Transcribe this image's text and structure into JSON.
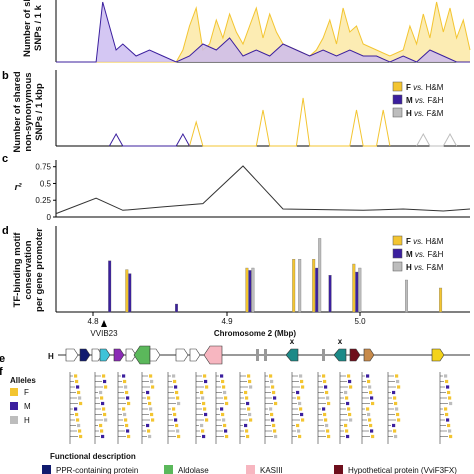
{
  "colors": {
    "F": "#f3c531",
    "M": "#3b1f9e",
    "H": "#bdbdbd",
    "F_fill": "#fbe7a0",
    "M_fill": "#c9b9f0"
  },
  "panels": {
    "a": {
      "letter": "",
      "ylabel_lines": [
        "Number of sl",
        "SNPs / 1 k"
      ]
    },
    "b": {
      "letter": "b",
      "ylabel_lines": [
        "Number of shared",
        "non-synonymous",
        "SNPs / 1 kbp"
      ]
    },
    "c": {
      "letter": "c",
      "ylabel": "r²"
    },
    "d": {
      "letter": "d",
      "ylabel_lines": [
        "TF-binding motif",
        "conservation",
        "per gene promoter"
      ]
    },
    "e": {
      "letter": "e",
      "track_label": "H"
    },
    "f": {
      "letter": "f"
    }
  },
  "legend_comparisons": [
    {
      "key": "F",
      "label_a": "F",
      "label_b": "vs.",
      "label_c": "H&M"
    },
    {
      "key": "M",
      "label_a": "M",
      "label_b": "vs.",
      "label_c": "F&H"
    },
    {
      "key": "H",
      "label_a": "H",
      "label_b": "vs.",
      "label_c": "F&M"
    }
  ],
  "alleles": {
    "title": "Alleles",
    "items": [
      {
        "key": "F",
        "label": "F"
      },
      {
        "key": "M",
        "label": "M"
      },
      {
        "key": "H",
        "label": "H"
      }
    ]
  },
  "xaxis": {
    "title": "Chromosome 2 (Mbp)",
    "ticks": [
      "4.8",
      "4.9",
      "5.0"
    ],
    "marker": "VVIB23"
  },
  "gene_marks": [
    "x",
    "x"
  ],
  "functional": {
    "title": "Functional description",
    "items": [
      {
        "label": "PPR-containing protein",
        "color": "#101a6e"
      },
      {
        "label": "Aldolase",
        "color": "#5bb85b"
      },
      {
        "label": "KASIII",
        "color": "#f7b6c0"
      },
      {
        "label": "Hypothetical protein (VviF3FX)",
        "color": "#6e0f1c"
      }
    ]
  },
  "chart_data": [
    {
      "type": "area",
      "panel": "a",
      "xlim": [
        4.75,
        5.06
      ],
      "series": [
        {
          "key": "F",
          "x": [
            4.75,
            4.79,
            4.8,
            4.82,
            4.84,
            4.845,
            4.85,
            4.855,
            4.86,
            4.865,
            4.87,
            4.875,
            4.88,
            4.885,
            4.89,
            4.895,
            4.9,
            4.905,
            4.91,
            4.915,
            4.92,
            4.93,
            4.94,
            4.945,
            4.95,
            4.955,
            4.96,
            4.965,
            4.97,
            4.975,
            4.98,
            4.99,
            5.0,
            5.01,
            5.015,
            5.02,
            5.025,
            5.03,
            5.035,
            5.04,
            5.045,
            5.05,
            5.055,
            5.06
          ],
          "y": [
            0,
            0,
            0,
            0,
            0,
            2,
            6,
            9,
            2,
            3,
            7,
            4,
            8,
            5,
            3,
            6,
            9,
            4,
            8,
            5,
            3,
            2,
            1,
            2,
            4,
            7,
            3,
            9,
            5,
            6,
            3,
            2,
            1,
            2,
            6,
            3,
            8,
            4,
            10,
            5,
            9,
            4,
            7,
            2
          ]
        },
        {
          "key": "M",
          "x": [
            4.75,
            4.78,
            4.785,
            4.79,
            4.795,
            4.8,
            4.81,
            4.82,
            4.83,
            4.84,
            4.85,
            4.86,
            4.87,
            4.88,
            4.89,
            4.9,
            4.91,
            4.92,
            4.93,
            4.94,
            4.95,
            4.96,
            4.97,
            4.98,
            4.99,
            5.0,
            5.01,
            5.02,
            5.03,
            5.04,
            5.05,
            5.06
          ],
          "y": [
            0,
            0,
            10,
            6,
            2,
            3,
            1,
            2,
            1,
            0,
            1,
            3,
            2,
            4,
            1,
            2,
            1,
            3,
            2,
            1,
            2,
            1,
            2,
            1,
            1,
            0,
            1,
            0,
            2,
            1,
            0,
            0
          ]
        }
      ]
    },
    {
      "type": "line",
      "panel": "b",
      "xlim": [
        4.75,
        5.06
      ],
      "series": [
        {
          "key": "F",
          "x": [
            4.85,
            4.855,
            4.86,
            4.9,
            4.905,
            4.91,
            4.93,
            4.935,
            4.94,
            4.97,
            4.975,
            4.98,
            4.99,
            4.995,
            5.0
          ],
          "y": [
            0,
            2,
            0,
            0,
            3,
            0,
            0,
            4,
            0,
            0,
            3,
            0,
            0,
            3,
            0
          ]
        },
        {
          "key": "M",
          "x": [
            4.79,
            4.795,
            4.8,
            4.84,
            4.845,
            4.85
          ],
          "y": [
            0,
            1,
            0,
            0,
            1,
            0
          ]
        },
        {
          "key": "H",
          "x": [
            5.02,
            5.025,
            5.03,
            5.04,
            5.045,
            5.05
          ],
          "y": [
            0,
            1,
            0,
            0,
            1,
            0
          ]
        }
      ]
    },
    {
      "type": "line",
      "panel": "c",
      "ylabel": "r²",
      "yticks": [
        "0.75",
        "0.5",
        "0.25",
        "0"
      ],
      "ylim": [
        0,
        0.85
      ],
      "x": [
        4.75,
        4.78,
        4.8,
        4.83,
        4.86,
        4.89,
        4.92,
        4.95,
        4.98,
        5.01,
        5.04,
        5.06
      ],
      "y": [
        0.05,
        0.28,
        0.1,
        0.15,
        0.2,
        0.76,
        0.12,
        0.11,
        0.1,
        0.12,
        0.09,
        0.12
      ]
    },
    {
      "type": "bar",
      "panel": "d",
      "xlim": [
        4.75,
        5.06
      ],
      "ylim": [
        0,
        1
      ],
      "bars": [
        {
          "x": 4.79,
          "F": 0.0,
          "M": 0.64,
          "H": 0.0
        },
        {
          "x": 4.805,
          "F": 0.53,
          "M": 0.48,
          "H": 0.0
        },
        {
          "x": 4.84,
          "F": 0.0,
          "M": 0.1,
          "H": 0.0
        },
        {
          "x": 4.895,
          "F": 0.55,
          "M": 0.52,
          "H": 0.55
        },
        {
          "x": 4.93,
          "F": 0.66,
          "M": 0.0,
          "H": 0.66
        },
        {
          "x": 4.945,
          "F": 0.66,
          "M": 0.55,
          "H": 0.92
        },
        {
          "x": 4.955,
          "F": 0.0,
          "M": 0.46,
          "H": 0.0
        },
        {
          "x": 4.975,
          "F": 0.6,
          "M": 0.5,
          "H": 0.55
        },
        {
          "x": 5.01,
          "F": 0.0,
          "M": 0.0,
          "H": 0.4
        },
        {
          "x": 5.04,
          "F": 0.3,
          "M": 0.0,
          "H": 0.0
        }
      ]
    }
  ]
}
